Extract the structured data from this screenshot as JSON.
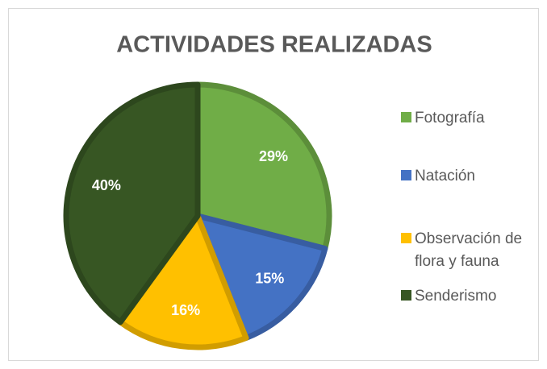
{
  "chart_data": {
    "type": "pie",
    "title": "ACTIVIDADES REALIZADAS",
    "categories": [
      "Fotografía",
      "Natación",
      "Observación de flora y fauna",
      "Senderismo"
    ],
    "values": [
      29,
      15,
      16,
      40
    ],
    "value_labels": [
      "29%",
      "15%",
      "16%",
      "40%"
    ],
    "colors": [
      "#70ad47",
      "#4472c4",
      "#ffc000",
      "#375623"
    ],
    "legend": "right"
  }
}
